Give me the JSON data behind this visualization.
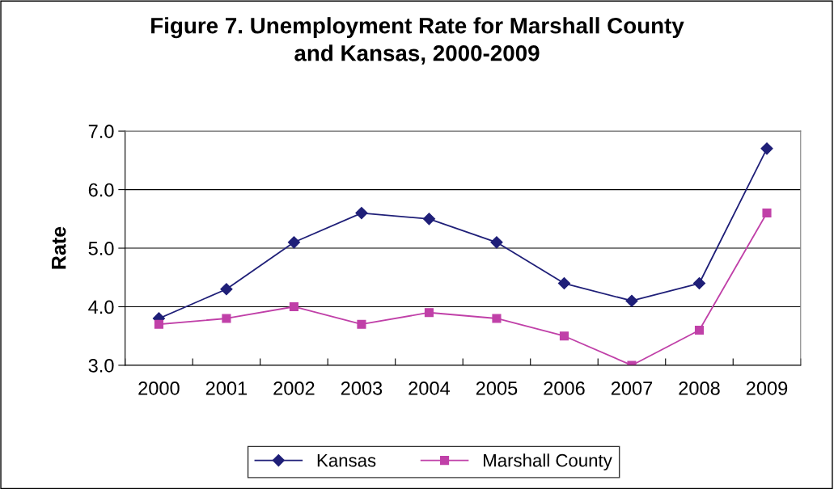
{
  "chart_data": {
    "type": "line",
    "title": "Figure 7. Unemployment Rate for Marshall County\nand Kansas, 2000-2009",
    "ylabel": "Rate",
    "categories": [
      "2000",
      "2001",
      "2002",
      "2003",
      "2004",
      "2005",
      "2006",
      "2007",
      "2008",
      "2009"
    ],
    "series": [
      {
        "name": "Kansas",
        "color": "#1f1f78",
        "marker": "diamond",
        "values": [
          3.8,
          4.3,
          5.1,
          5.6,
          5.5,
          5.1,
          4.4,
          4.1,
          4.4,
          6.7
        ]
      },
      {
        "name": "Marshall County",
        "color": "#c040a8",
        "marker": "square",
        "values": [
          3.7,
          3.8,
          4.0,
          3.7,
          3.9,
          3.8,
          3.5,
          3.0,
          3.6,
          5.6
        ]
      }
    ],
    "ylim": [
      3,
      7
    ],
    "yticks": [
      {
        "value": 3,
        "label": "3.0"
      },
      {
        "value": 4,
        "label": "4.0"
      },
      {
        "value": 5,
        "label": "5.0"
      },
      {
        "value": 6,
        "label": "6.0"
      },
      {
        "value": 7,
        "label": "7.0"
      }
    ],
    "grid": "y",
    "legend": "bottom",
    "line_style": "solid"
  }
}
